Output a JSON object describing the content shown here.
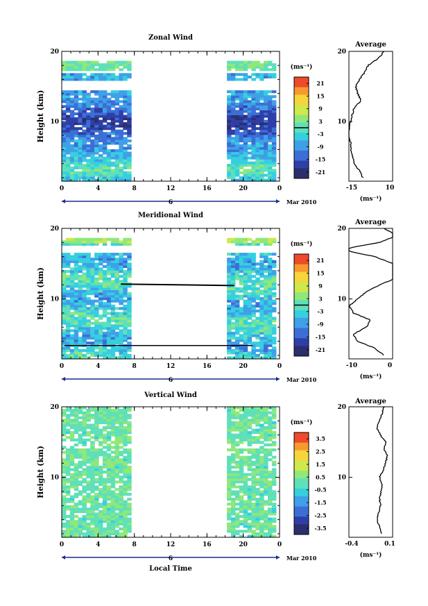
{
  "panels": [
    {
      "id": "zonal",
      "title": "Zonal Wind",
      "ylabel": "Height (km)",
      "y_ticks": [
        "20",
        "10"
      ],
      "x_ticks": [
        "0",
        "4",
        "8",
        "12",
        "16",
        "20",
        "0"
      ],
      "date_day": "6",
      "date_month": "Mar 2010",
      "unit_label": "(ms⁻¹)",
      "colorbar_ticks": [
        "21",
        "15",
        "9",
        "3",
        "-3",
        "-9",
        "-15",
        "-21"
      ],
      "avg_title": "Average",
      "avg_y_ticks": [
        "20",
        "10"
      ],
      "avg_x_ticks": [
        "-15",
        "10"
      ],
      "avg_unit": "(ms⁻¹)"
    },
    {
      "id": "meridional",
      "title": "Meridional Wind",
      "ylabel": "Height (km)",
      "y_ticks": [
        "20",
        "10"
      ],
      "x_ticks": [
        "0",
        "4",
        "8",
        "12",
        "16",
        "20",
        "0"
      ],
      "date_day": "6",
      "date_month": "Mar 2010",
      "unit_label": "(ms⁻¹)",
      "colorbar_ticks": [
        "21",
        "15",
        "9",
        "3",
        "-3",
        "-9",
        "-15",
        "-21"
      ],
      "avg_title": "Average",
      "avg_y_ticks": [
        "20",
        "10"
      ],
      "avg_x_ticks": [
        "-10",
        "0"
      ],
      "avg_unit": "(ms⁻¹)"
    },
    {
      "id": "vertical",
      "title": "Vertical Wind",
      "ylabel": "Height (km)",
      "y_ticks": [
        "20",
        "10"
      ],
      "x_ticks": [
        "0",
        "4",
        "8",
        "12",
        "16",
        "20",
        "0"
      ],
      "date_day": "6",
      "date_month": "Mar 2010",
      "unit_label": "(ms⁻¹)",
      "colorbar_ticks": [
        "3.5",
        "2.5",
        "1.5",
        "0.5",
        "-0.5",
        "-1.5",
        "-2.5",
        "-3.5"
      ],
      "avg_title": "Average",
      "avg_y_ticks": [
        "20",
        "10"
      ],
      "avg_x_ticks": [
        "-0.4",
        "0.1"
      ],
      "avg_unit": "(ms⁻¹)"
    }
  ],
  "xlabel": "Local Time",
  "colormap": [
    "#2b2f6e",
    "#2f3fa8",
    "#3b6fd6",
    "#3fa0e8",
    "#36cfe0",
    "#5fe0b8",
    "#8fe87a",
    "#cfe84a",
    "#f7d43a",
    "#f79a2e",
    "#ef4a2a"
  ],
  "chart_data": [
    {
      "type": "heatmap",
      "title": "Zonal Wind",
      "ylabel": "Height (km)",
      "x_unit": "local time (h)",
      "xlim": [
        0,
        24
      ],
      "ylim": [
        1.5,
        20
      ],
      "data_windows_hours": [
        [
          0,
          7.3
        ],
        [
          18.2,
          23.6
        ]
      ],
      "data_height_km": [
        1.5,
        18.5
      ],
      "value_range": [
        -24,
        24
      ],
      "colorbar": [
        -21,
        -15,
        -9,
        -3,
        3,
        9,
        15,
        21
      ],
      "zero_contour": 0,
      "profile": {
        "xlim": [
          -15,
          10
        ],
        "height": [
          2,
          3,
          4,
          5,
          6,
          7,
          8,
          9,
          10,
          11,
          12,
          13,
          14,
          15,
          16,
          17,
          18,
          19,
          20
        ],
        "wind": [
          -7,
          -9,
          -12,
          -13,
          -14,
          -14,
          -15,
          -15,
          -14,
          -13,
          -12,
          -8,
          -10,
          -11,
          -9,
          -6,
          -4,
          2,
          5
        ]
      }
    },
    {
      "type": "heatmap",
      "title": "Meridional Wind",
      "ylabel": "Height (km)",
      "x_unit": "local time (h)",
      "xlim": [
        0,
        24
      ],
      "ylim": [
        1.5,
        20
      ],
      "data_windows_hours": [
        [
          0,
          7.3
        ],
        [
          18.2,
          23.6
        ]
      ],
      "data_height_km": [
        1.5,
        18.5
      ],
      "value_range": [
        -24,
        24
      ],
      "colorbar": [
        -21,
        -15,
        -9,
        -3,
        3,
        9,
        15,
        21
      ],
      "zero_contour": 0,
      "profile": {
        "xlim": [
          -10,
          0
        ],
        "height": [
          2,
          3,
          4,
          5,
          6,
          7,
          8,
          9,
          10,
          11,
          12,
          13,
          14,
          15,
          16,
          17,
          18,
          19,
          20
        ],
        "wind": [
          -2,
          -4,
          -8,
          -9,
          -6,
          -5,
          -9,
          -10,
          -8,
          -6,
          -3,
          1,
          2,
          0,
          -4,
          -12,
          -3,
          1,
          -2
        ]
      }
    },
    {
      "type": "heatmap",
      "title": "Vertical Wind",
      "ylabel": "Height (km)",
      "xlabel": "Local Time",
      "x_unit": "local time (h)",
      "xlim": [
        0,
        24
      ],
      "ylim": [
        1.5,
        20
      ],
      "data_windows_hours": [
        [
          0,
          7.3
        ],
        [
          18.2,
          23.6
        ]
      ],
      "data_height_km": [
        1.5,
        20
      ],
      "value_range": [
        -4,
        4
      ],
      "colorbar": [
        -3.5,
        -2.5,
        -1.5,
        -0.5,
        0.5,
        1.5,
        2.5,
        3.5
      ],
      "profile": {
        "xlim": [
          -0.4,
          0.1
        ],
        "height": [
          2,
          3,
          4,
          5,
          6,
          7,
          8,
          9,
          10,
          11,
          12,
          13,
          14,
          15,
          16,
          17,
          18,
          19,
          20
        ],
        "wind": [
          -0.03,
          -0.05,
          -0.08,
          -0.06,
          -0.04,
          -0.05,
          -0.03,
          -0.02,
          -0.05,
          -0.01,
          0.02,
          0.04,
          0.0,
          0.02,
          -0.04,
          -0.08,
          -0.05,
          -0.02,
          0.0
        ]
      }
    }
  ]
}
